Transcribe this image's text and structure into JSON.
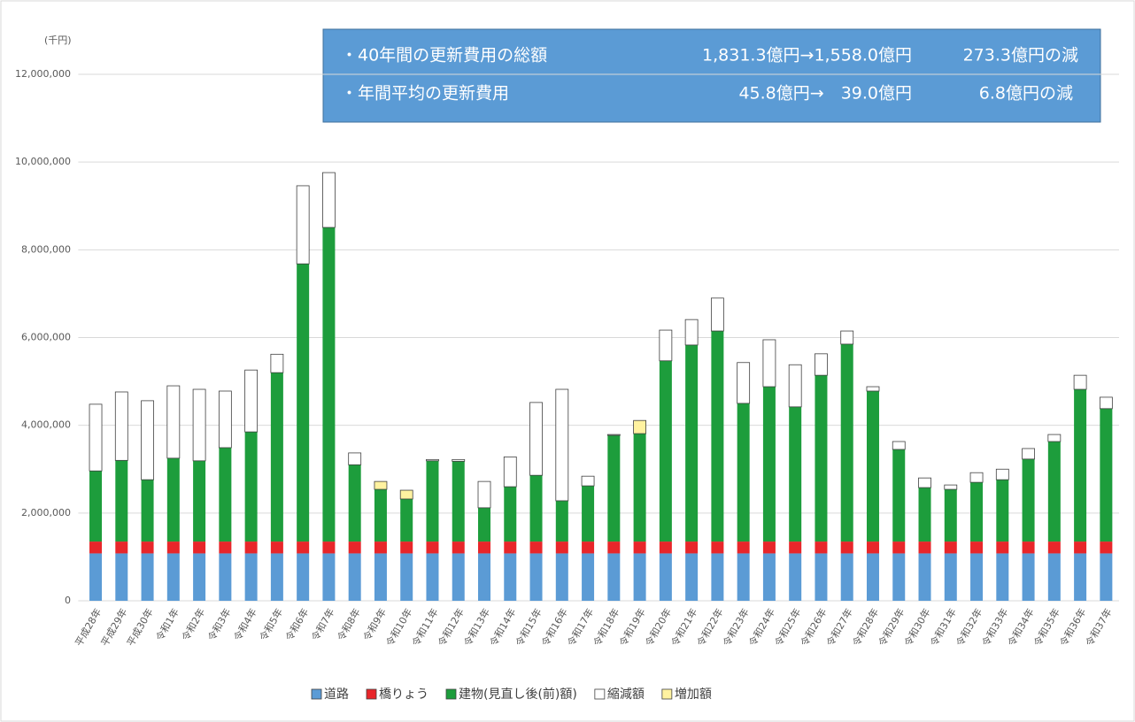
{
  "chart_data": {
    "type": "stacked_bar",
    "y_unit_label": "(千円)",
    "info_box": {
      "rows": [
        {
          "label": "・40年間の更新費用の総額",
          "change": "1,831.3億円→1,558.0億円",
          "result": "273.3億円の減"
        },
        {
          "label": "・年間平均の更新費用",
          "change": "45.8億円→　39.0億円",
          "result": "6.8億円の減"
        }
      ]
    },
    "categories": [
      "平成28年",
      "平成29年",
      "平成30年",
      "令和1年",
      "令和2年",
      "令和3年",
      "令和4年",
      "令和5年",
      "令和6年",
      "令和7年",
      "令和8年",
      "令和9年",
      "令和10年",
      "令和11年",
      "令和12年",
      "令和13年",
      "令和14年",
      "令和15年",
      "令和16年",
      "令和17年",
      "令和18年",
      "令和19年",
      "令和20年",
      "令和21年",
      "令和22年",
      "令和23年",
      "令和24年",
      "令和25年",
      "令和26年",
      "令和27年",
      "令和28年",
      "令和29年",
      "令和30年",
      "令和31年",
      "令和32年",
      "令和33年",
      "令和34年",
      "令和35年",
      "令和36年",
      "令和37年"
    ],
    "series": [
      {
        "name": "道路",
        "color": "#5b9bd5",
        "values": [
          1080000,
          1080000,
          1080000,
          1080000,
          1080000,
          1080000,
          1080000,
          1080000,
          1080000,
          1080000,
          1080000,
          1080000,
          1080000,
          1080000,
          1080000,
          1080000,
          1080000,
          1080000,
          1080000,
          1080000,
          1080000,
          1080000,
          1080000,
          1080000,
          1080000,
          1080000,
          1080000,
          1080000,
          1080000,
          1080000,
          1080000,
          1080000,
          1080000,
          1080000,
          1080000,
          1080000,
          1080000,
          1080000,
          1080000,
          1080000
        ]
      },
      {
        "name": "橋りょう",
        "color": "#e8262a",
        "values": [
          270000,
          270000,
          270000,
          270000,
          270000,
          270000,
          270000,
          270000,
          270000,
          270000,
          270000,
          270000,
          270000,
          270000,
          270000,
          270000,
          270000,
          270000,
          270000,
          270000,
          270000,
          270000,
          270000,
          270000,
          270000,
          270000,
          270000,
          270000,
          270000,
          270000,
          270000,
          270000,
          270000,
          270000,
          270000,
          270000,
          270000,
          270000,
          270000,
          270000
        ]
      },
      {
        "name": "建物(見直し後(前)額)",
        "color": "#1d9d3c",
        "values": [
          1610000,
          1850000,
          1410000,
          1900000,
          1840000,
          2140000,
          2500000,
          3850000,
          6330000,
          7160000,
          1750000,
          1190000,
          970000,
          1840000,
          1830000,
          770000,
          1250000,
          1510000,
          930000,
          1270000,
          2420000,
          2460000,
          4120000,
          4480000,
          4800000,
          3150000,
          3530000,
          3070000,
          3790000,
          4500000,
          3430000,
          2100000,
          1230000,
          1190000,
          1350000,
          1410000,
          1880000,
          2280000,
          3470000,
          3030000
        ]
      },
      {
        "name": "縮減額",
        "color": "#ffffff",
        "values": [
          1520000,
          1560000,
          1800000,
          1650000,
          1630000,
          1290000,
          1410000,
          420000,
          1780000,
          1250000,
          270000,
          0,
          0,
          30000,
          40000,
          600000,
          680000,
          1660000,
          2540000,
          220000,
          20000,
          0,
          700000,
          580000,
          750000,
          930000,
          1070000,
          960000,
          490000,
          300000,
          100000,
          180000,
          220000,
          100000,
          220000,
          240000,
          240000,
          160000,
          320000,
          260000
        ]
      },
      {
        "name": "増加額",
        "color": "#fff2a0",
        "values": [
          0,
          0,
          0,
          0,
          0,
          0,
          0,
          0,
          0,
          0,
          0,
          180000,
          200000,
          0,
          0,
          0,
          0,
          0,
          0,
          0,
          0,
          300000,
          0,
          0,
          0,
          0,
          0,
          0,
          0,
          0,
          0,
          0,
          0,
          0,
          0,
          0,
          0,
          0,
          0,
          0
        ]
      }
    ],
    "ylim": [
      0,
      12000000
    ],
    "yticks": [
      0,
      {
        "value": 2000000,
        "label": "2,000,000"
      },
      {
        "value": 4000000,
        "label": "4,000,000"
      },
      {
        "value": 6000000,
        "label": "6,000,000"
      },
      {
        "value": 8000000,
        "label": "8,000,000"
      },
      {
        "value": 10000000,
        "label": "10,000,000"
      },
      {
        "value": 12000000,
        "label": "12,000,000"
      }
    ],
    "grid": true,
    "legend": "bottom"
  }
}
